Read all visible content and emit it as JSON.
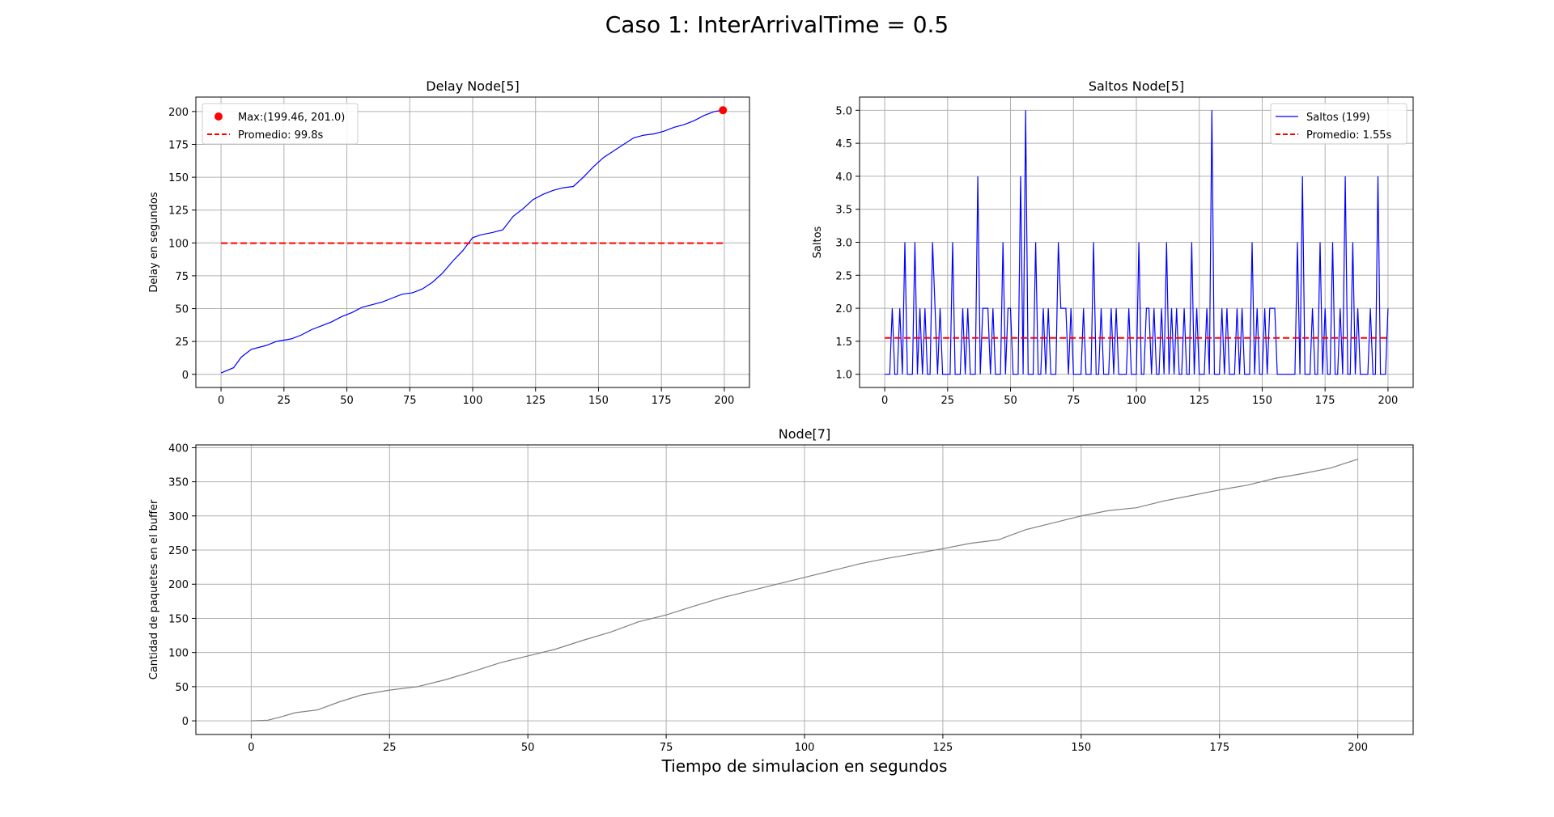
{
  "figure": {
    "suptitle": "Caso 1: InterArrivalTime = 0.5"
  },
  "chart_data": [
    {
      "type": "line",
      "title": "Delay Node[5]",
      "xlabel": "",
      "ylabel": "Delay en segundos",
      "xlim": [
        -10,
        210
      ],
      "ylim": [
        -10,
        211
      ],
      "xticks": [
        0,
        25,
        50,
        75,
        100,
        125,
        150,
        175,
        200
      ],
      "yticks": [
        0,
        25,
        50,
        75,
        100,
        125,
        150,
        175,
        200
      ],
      "grid": true,
      "legend_position": "upper left",
      "legend": [
        "Max:(199.46, 201.0)",
        "Promedio: 99.8s"
      ],
      "series": [
        {
          "color": "#0000ff",
          "x": [
            0,
            5,
            8,
            12,
            18,
            22,
            25,
            28,
            32,
            36,
            40,
            44,
            48,
            52,
            56,
            60,
            64,
            68,
            72,
            76,
            80,
            84,
            88,
            92,
            96,
            100,
            103,
            108,
            112,
            116,
            120,
            124,
            128,
            132,
            136,
            140,
            144,
            148,
            152,
            156,
            160,
            164,
            168,
            172,
            176,
            180,
            184,
            188,
            192,
            196,
            199.46
          ],
          "y": [
            1,
            5,
            13,
            19,
            22,
            25,
            26,
            27,
            30,
            34,
            37,
            40,
            44,
            47,
            51,
            53,
            55,
            58,
            61,
            62,
            65,
            70,
            77,
            86,
            94,
            104,
            106,
            108,
            110,
            120,
            126,
            133,
            137,
            140,
            142,
            143,
            150,
            158,
            165,
            170,
            175,
            180,
            182,
            183,
            185,
            188,
            190,
            193,
            197,
            200,
            201
          ]
        },
        {
          "color": "#ff0000",
          "x": [
            0,
            200
          ],
          "y": [
            99.8,
            99.8
          ]
        }
      ],
      "max_point": {
        "x": 199.46,
        "y": 201.0
      },
      "average": 99.8
    },
    {
      "type": "line",
      "title": "Saltos Node[5]",
      "xlabel": "",
      "ylabel": "Saltos",
      "xlim": [
        -10,
        210
      ],
      "ylim": [
        0.8,
        5.2
      ],
      "xticks": [
        0,
        25,
        50,
        75,
        100,
        125,
        150,
        175,
        200
      ],
      "yticks": [
        1.0,
        1.5,
        2.0,
        2.5,
        3.0,
        3.5,
        4.0,
        4.5,
        5.0
      ],
      "grid": true,
      "legend_position": "upper right",
      "legend": [
        "Saltos (199)",
        "Promedio: 1.55s"
      ],
      "series": [
        {
          "name": "Saltos (199)",
          "color": "#0000ff",
          "x": [
            0,
            1,
            2,
            3,
            4,
            5,
            6,
            7,
            8,
            9,
            10,
            11,
            12,
            13,
            14,
            15,
            16,
            17,
            18,
            19,
            20,
            21,
            22,
            23,
            24,
            25,
            26,
            27,
            28,
            29,
            30,
            31,
            32,
            33,
            34,
            35,
            36,
            37,
            38,
            39,
            40,
            41,
            42,
            43,
            44,
            45,
            46,
            47,
            48,
            49,
            50,
            51,
            52,
            53,
            54,
            55,
            56,
            57,
            58,
            59,
            60,
            61,
            62,
            63,
            64,
            65,
            66,
            67,
            68,
            69,
            70,
            71,
            72,
            73,
            74,
            75,
            76,
            77,
            78,
            79,
            80,
            81,
            82,
            83,
            84,
            85,
            86,
            87,
            88,
            89,
            90,
            91,
            92,
            93,
            94,
            95,
            96,
            97,
            98,
            99,
            100,
            101,
            102,
            103,
            104,
            105,
            106,
            107,
            108,
            109,
            110,
            111,
            112,
            113,
            114,
            115,
            116,
            117,
            118,
            119,
            120,
            121,
            122,
            123,
            124,
            125,
            126,
            127,
            128,
            129,
            130,
            131,
            132,
            133,
            134,
            135,
            136,
            137,
            138,
            139,
            140,
            141,
            142,
            143,
            144,
            145,
            146,
            147,
            148,
            149,
            150,
            151,
            152,
            153,
            154,
            155,
            156,
            157,
            158,
            159,
            160,
            161,
            162,
            163,
            164,
            165,
            166,
            167,
            168,
            169,
            170,
            171,
            172,
            173,
            174,
            175,
            176,
            177,
            178,
            179,
            180,
            181,
            182,
            183,
            184,
            185,
            186,
            187,
            188,
            189,
            190,
            191,
            192,
            193,
            194,
            195,
            196,
            197,
            198,
            199,
            200
          ],
          "y": [
            1,
            1,
            1,
            2,
            1,
            1,
            2,
            1,
            3,
            1,
            1,
            1,
            3,
            1,
            2,
            1,
            2,
            1,
            1,
            3,
            2,
            1,
            2,
            1,
            1,
            1,
            1,
            3,
            1,
            1,
            1,
            2,
            1,
            2,
            1,
            1,
            1,
            4,
            1,
            2,
            2,
            2,
            1,
            2,
            1,
            1,
            1,
            3,
            1,
            2,
            2,
            1,
            1,
            1,
            4,
            1,
            5,
            1,
            1,
            1,
            3,
            1,
            1,
            2,
            1,
            2,
            1,
            1,
            1,
            3,
            2,
            2,
            2,
            1,
            2,
            1,
            1,
            1,
            1,
            2,
            1,
            1,
            1,
            3,
            1,
            1,
            2,
            1,
            1,
            1,
            2,
            1,
            2,
            1,
            1,
            1,
            1,
            2,
            1,
            1,
            1,
            3,
            1,
            1,
            2,
            2,
            1,
            2,
            1,
            1,
            2,
            1,
            3,
            1,
            2,
            1,
            2,
            1,
            1,
            2,
            1,
            1,
            3,
            1,
            2,
            1,
            1,
            1,
            2,
            1,
            5,
            1,
            1,
            1,
            2,
            1,
            2,
            1,
            1,
            1,
            2,
            1,
            2,
            1,
            1,
            1,
            3,
            1,
            2,
            1,
            1,
            2,
            1,
            2,
            2,
            2,
            1,
            1,
            1,
            1,
            1,
            1,
            1,
            1,
            3,
            1,
            4,
            1,
            1,
            1,
            2,
            1,
            1,
            3,
            1,
            2,
            1,
            1,
            3,
            1,
            1,
            2,
            1,
            4,
            1,
            1,
            3,
            1,
            2,
            1,
            1,
            1,
            1,
            2,
            1,
            1,
            4,
            1,
            1,
            1,
            2
          ]
        },
        {
          "name": "Promedio: 1.55s",
          "color": "#ff0000",
          "x": [
            0,
            200
          ],
          "y": [
            1.55,
            1.55
          ]
        }
      ],
      "average": 1.55
    },
    {
      "type": "line",
      "title": "Node[7]",
      "xlabel": "Tiempo de simulacion en segundos",
      "ylabel": "Cantidad de paquetes en el buffer",
      "xlim": [
        -10,
        210
      ],
      "ylim": [
        -20,
        404
      ],
      "xticks": [
        0,
        25,
        50,
        75,
        100,
        125,
        150,
        175,
        200
      ],
      "yticks": [
        0,
        50,
        100,
        150,
        200,
        250,
        300,
        350,
        400
      ],
      "grid": true,
      "series": [
        {
          "color": "#808080",
          "x": [
            0,
            3,
            5,
            8,
            12,
            16,
            20,
            25,
            30,
            35,
            40,
            45,
            50,
            55,
            60,
            65,
            70,
            75,
            80,
            85,
            90,
            95,
            100,
            105,
            110,
            115,
            120,
            125,
            130,
            135,
            140,
            145,
            150,
            155,
            160,
            165,
            170,
            175,
            180,
            185,
            190,
            195,
            200
          ],
          "y": [
            0,
            1,
            5,
            12,
            16,
            28,
            38,
            45,
            50,
            60,
            72,
            85,
            95,
            105,
            118,
            130,
            145,
            155,
            168,
            180,
            190,
            200,
            210,
            220,
            230,
            238,
            245,
            252,
            260,
            265,
            280,
            290,
            300,
            308,
            312,
            322,
            330,
            338,
            345,
            355,
            362,
            370,
            383
          ]
        }
      ]
    }
  ]
}
